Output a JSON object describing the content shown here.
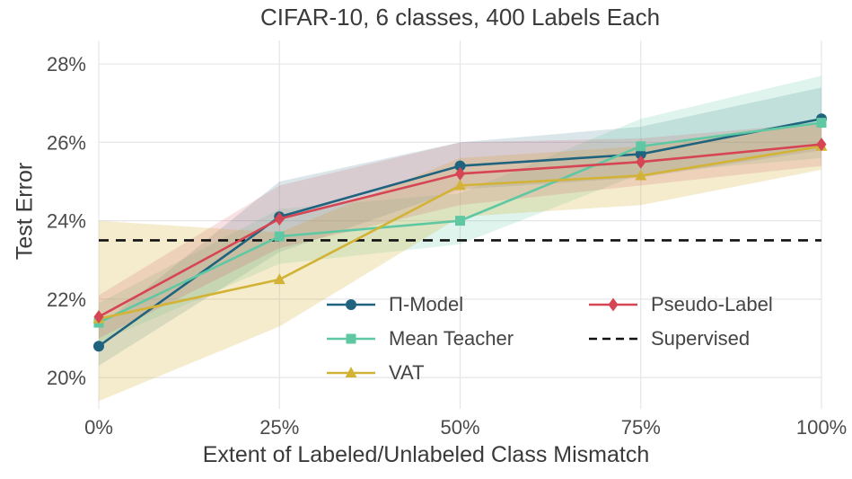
{
  "figure": {
    "title": "CIFAR-10, 6 classes, 400 Labels Each"
  },
  "chart_data": {
    "type": "line",
    "title": "CIFAR-10, 6 classes, 400 Labels Each",
    "xlabel": "Extent of Labeled/Unlabeled Class Mismatch",
    "ylabel": "Test Error",
    "x": [
      0,
      25,
      50,
      75,
      100
    ],
    "x_tick_labels": [
      "0%",
      "25%",
      "50%",
      "75%",
      "100%"
    ],
    "y_ticks": [
      20,
      22,
      24,
      26,
      28
    ],
    "y_tick_labels": [
      "20%",
      "22%",
      "24%",
      "26%",
      "28%"
    ],
    "xlim": [
      0,
      100
    ],
    "ylim": [
      19.2,
      28.6
    ],
    "grid": true,
    "legend_position": "lower-center two columns inside plot",
    "series": [
      {
        "name": "Π-Model",
        "marker": "circle",
        "color": "#1f637e",
        "legend_col": 0,
        "values": [
          20.8,
          24.1,
          25.4,
          25.7,
          26.6
        ],
        "band_low": [
          20.3,
          23.2,
          24.8,
          25.1,
          25.8
        ],
        "band_high": [
          21.3,
          25.0,
          26.0,
          26.4,
          27.4
        ],
        "band_opacity": 0.16
      },
      {
        "name": "Mean Teacher",
        "marker": "square",
        "color": "#5fc8a2",
        "legend_col": 0,
        "values": [
          21.4,
          23.6,
          24.0,
          25.9,
          26.5
        ],
        "band_low": [
          20.9,
          22.9,
          23.4,
          25.2,
          25.6
        ],
        "band_high": [
          21.9,
          24.3,
          24.7,
          26.6,
          27.7
        ],
        "band_opacity": 0.2
      },
      {
        "name": "VAT",
        "marker": "triangle",
        "color": "#d3b336",
        "legend_col": 0,
        "values": [
          21.5,
          22.5,
          24.9,
          25.15,
          25.9
        ],
        "band_low": [
          19.4,
          21.3,
          24.1,
          24.4,
          25.3
        ],
        "band_high": [
          24.0,
          23.7,
          25.6,
          25.9,
          26.5
        ],
        "band_opacity": 0.25
      },
      {
        "name": "Pseudo-Label",
        "marker": "diamond",
        "color": "#d64553",
        "legend_col": 1,
        "values": [
          21.55,
          24.05,
          25.2,
          25.5,
          25.95
        ],
        "band_low": [
          21.0,
          23.3,
          24.4,
          24.9,
          25.4
        ],
        "band_high": [
          22.1,
          24.9,
          26.0,
          26.1,
          26.5
        ],
        "band_opacity": 0.16
      }
    ],
    "baseline": {
      "name": "Supervised",
      "value": 23.5,
      "color": "#111111",
      "dash": true,
      "legend_col": 1
    }
  }
}
